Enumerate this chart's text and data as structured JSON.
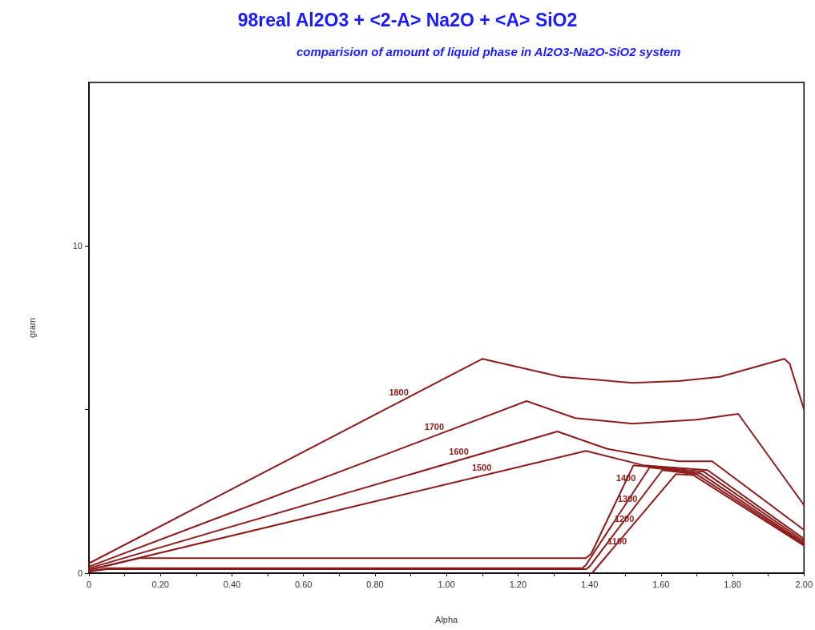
{
  "chart_data": {
    "type": "line",
    "title": "98real Al2O3 + <2-A> Na2O + <A> SiO2",
    "subtitle": "comparision of amount of liquid phase in Al2O3-Na2O-SiO2 system",
    "xlabel": "Alpha",
    "ylabel": "gram",
    "xlim": [
      0,
      2
    ],
    "ylim": [
      0,
      15
    ],
    "xticks": [
      0,
      {
        "value": 0.1,
        "label": null
      },
      {
        "value": 0.2,
        "label": "0.20"
      },
      {
        "value": 0.3,
        "label": null
      },
      {
        "value": 0.4,
        "label": "0.40"
      },
      {
        "value": 0.5,
        "label": null
      },
      {
        "value": 0.6,
        "label": "0.60"
      },
      {
        "value": 0.7,
        "label": null
      },
      {
        "value": 0.8,
        "label": "0.80"
      },
      {
        "value": 0.9,
        "label": null
      },
      {
        "value": 1.0,
        "label": "1.00"
      },
      {
        "value": 1.1,
        "label": null
      },
      {
        "value": 1.2,
        "label": "1.20"
      },
      {
        "value": 1.3,
        "label": null
      },
      {
        "value": 1.4,
        "label": "1.40"
      },
      {
        "value": 1.5,
        "label": null
      },
      {
        "value": 1.6,
        "label": "1.60"
      },
      {
        "value": 1.7,
        "label": null
      },
      {
        "value": 1.8,
        "label": "1.80"
      },
      {
        "value": 1.9,
        "label": null
      },
      {
        "value": 2.0,
        "label": "2.00"
      }
    ],
    "yticks": [
      0,
      {
        "value": 5,
        "label": null
      },
      10
    ],
    "grid": false,
    "legend": false,
    "marker": "none",
    "line_style": "solid",
    "series": [
      {
        "name": "1800",
        "color": "#8b1a1a",
        "x": [
          0,
          1.1,
          1.32,
          1.52,
          1.65,
          1.765,
          1.945,
          1.96,
          2.0
        ],
        "values": [
          0.3,
          6.55,
          6.0,
          5.82,
          5.87,
          6.0,
          6.55,
          6.4,
          5.0
        ]
      },
      {
        "name": "1700",
        "color": "#8b1a1a",
        "x": [
          0,
          1.224,
          1.36,
          1.52,
          1.7,
          1.816,
          2.0
        ],
        "values": [
          0.2,
          5.26,
          4.74,
          4.57,
          4.69,
          4.87,
          2.08
        ]
      },
      {
        "name": "1600",
        "color": "#8b1a1a",
        "x": [
          0,
          1.31,
          1.45,
          1.6,
          1.65,
          1.743,
          2.0
        ],
        "values": [
          0.15,
          4.33,
          3.8,
          3.5,
          3.42,
          3.42,
          1.32
        ]
      },
      {
        "name": "1500",
        "color": "#8b1a1a",
        "x": [
          0,
          1.39,
          1.55,
          1.73,
          2.0
        ],
        "values": [
          0.1,
          3.74,
          3.3,
          3.15,
          1.05
        ]
      },
      {
        "name": "1400",
        "color": "#8b1a1a",
        "x": [
          0,
          0.14,
          1.39,
          1.405,
          1.523,
          1.72,
          2.0
        ],
        "values": [
          0.1,
          0.46,
          0.46,
          0.6,
          3.3,
          3.1,
          0.98
        ]
      },
      {
        "name": "1300",
        "color": "#8b1a1a",
        "x": [
          0,
          0.05,
          1.38,
          1.39,
          1.568,
          1.71,
          2.0
        ],
        "values": [
          0.05,
          0.15,
          0.15,
          0.25,
          3.23,
          3.05,
          0.92
        ]
      },
      {
        "name": "1200",
        "color": "#8b1a1a",
        "x": [
          0,
          0.05,
          1.39,
          1.4,
          1.604,
          1.7,
          2.0
        ],
        "values": [
          0.05,
          0.12,
          0.12,
          0.2,
          3.15,
          3.02,
          0.88
        ]
      },
      {
        "name": "1100",
        "color": "#8b1a1a",
        "x": [
          1.407,
          1.642,
          1.69,
          2.0
        ],
        "values": [
          0,
          3.03,
          3.0,
          0.84
        ]
      }
    ]
  }
}
